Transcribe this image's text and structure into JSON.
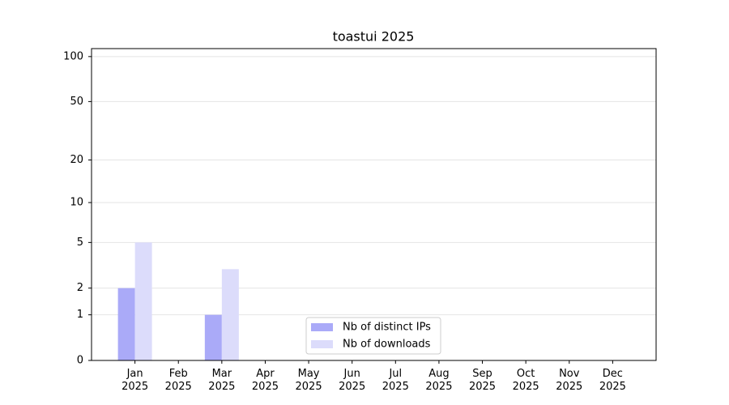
{
  "chart_data": {
    "type": "bar",
    "title": "toastui 2025",
    "categories": [
      "Jan\n2025",
      "Feb\n2025",
      "Mar\n2025",
      "Apr\n2025",
      "May\n2025",
      "Jun\n2025",
      "Jul\n2025",
      "Aug\n2025",
      "Sep\n2025",
      "Oct\n2025",
      "Nov\n2025",
      "Dec\n2025"
    ],
    "series": [
      {
        "name": "Nb of distinct IPs",
        "color": "#aaaaf8",
        "values": [
          2,
          0,
          1,
          0,
          0,
          0,
          0,
          0,
          0,
          0,
          0,
          0
        ]
      },
      {
        "name": "Nb of downloads",
        "color": "#dcdcfb",
        "values": [
          5,
          0,
          3,
          0,
          0,
          0,
          0,
          0,
          0,
          0,
          0,
          0
        ]
      }
    ],
    "yscale": "log1p",
    "ylim": [
      0,
      113
    ],
    "yticks": [
      0,
      1,
      2,
      5,
      10,
      20,
      50,
      100
    ],
    "grid": true,
    "legend": "lower center"
  }
}
